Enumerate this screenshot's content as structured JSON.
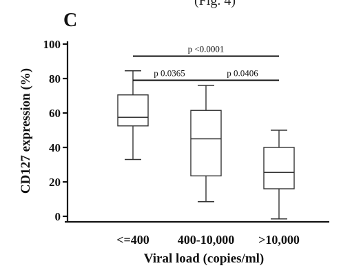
{
  "header_fragment": "(Fig. 4)",
  "panel_label": "C",
  "chart_data": {
    "type": "box",
    "xlabel": "Viral load (copies/ml)",
    "ylabel": "CD127 expression (%)",
    "ylim": [
      0,
      100
    ],
    "yticks": [
      0,
      20,
      40,
      60,
      80,
      100
    ],
    "categories": [
      "<=400",
      "400-10,000",
      ">10,000"
    ],
    "boxes": [
      {
        "category": "<=400",
        "min": 33,
        "q1": 52.5,
        "median": 57.5,
        "q3": 70.5,
        "max": 84.5
      },
      {
        "category": "400-10,000",
        "min": 8.5,
        "q1": 23.5,
        "median": 45,
        "q3": 61.5,
        "max": 76
      },
      {
        "category": ">10,000",
        "min": -1.5,
        "q1": 16,
        "median": 25.5,
        "q3": 40,
        "max": 50
      }
    ],
    "comparisons": [
      {
        "from": "<=400",
        "to": ">10,000",
        "label": "p <0.0001",
        "y": 93
      },
      {
        "from": "<=400",
        "to": "400-10,000",
        "label": "p 0.0365",
        "y": 79
      },
      {
        "from": "400-10,000",
        "to": ">10,000",
        "label": "p 0.0406",
        "y": 79
      }
    ],
    "grid": false,
    "legend": "none"
  }
}
